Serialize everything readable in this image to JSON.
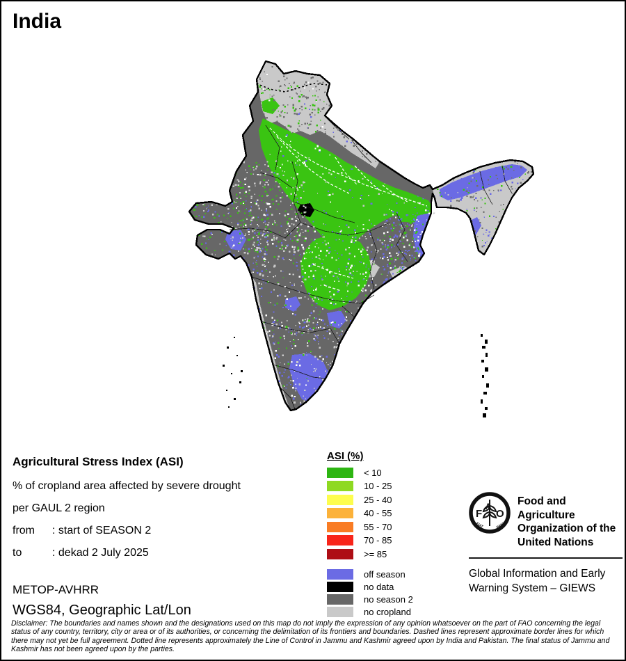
{
  "title": "India",
  "legend": {
    "title": "ASI (%)",
    "classes": [
      {
        "label": "< 10",
        "color": "#2db512"
      },
      {
        "label": "10 - 25",
        "color": "#8ed922"
      },
      {
        "label": "25 - 40",
        "color": "#fdfd4e"
      },
      {
        "label": "40 - 55",
        "color": "#fcb23a"
      },
      {
        "label": "55 - 70",
        "color": "#f97c24"
      },
      {
        "label": "70 - 85",
        "color": "#f8251a"
      },
      {
        "label": ">= 85",
        "color": "#ae0e15"
      }
    ],
    "extras": [
      {
        "label": "off season",
        "color": "#6b6be4"
      },
      {
        "label": "no data",
        "color": "#000000"
      },
      {
        "label": "no season 2",
        "color": "#676767"
      },
      {
        "label": "no cropland",
        "color": "#c9c9c9"
      }
    ]
  },
  "info": {
    "heading": "Agricultural Stress Index (ASI)",
    "line1": "% of cropland area affected by severe drought",
    "line2": "per GAUL 2 region",
    "from_label": "from",
    "from_value": ": start of SEASON 2",
    "to_label": "to",
    "to_value": ": dekad 2 July 2025"
  },
  "source": {
    "sensor": "METOP-AVHRR",
    "projection": "WGS84, Geographic Lat/Lon"
  },
  "fao": {
    "logo_text": "FAO",
    "logo_motto_left": "FIAT",
    "logo_motto_right": "PANIS",
    "org_lines": [
      "Food and Agriculture",
      "Organization of the",
      "United Nations"
    ],
    "giews_lines": [
      "Global Information and Early",
      "Warning System – GIEWS"
    ]
  },
  "disclaimer": "Disclaimer: The boundaries and names shown and the designations used on this map do not imply the expression of any opinion whatsoever on the part of FAO concerning the legal status of any country, territory, city or area or of its authorities, or concerning the delimitation of its frontiers and boundaries. Dashed lines represent approximate border lines for which there may not yet be full agreement. Dotted line represents approximately the Line of Control in Jammu and Kashmir agreed upon by India and Pakistan. The final status of Jammu and Kashmir has not been agreed upon by the parties.",
  "map_colors": {
    "asi_under_10": "#3ac412",
    "off_season": "#6b6be4",
    "no_season_2": "#676767",
    "no_cropland": "#c9c9c9",
    "no_data": "#000000",
    "boundary": "#000000",
    "speckle_white": "#ffffff",
    "speckle_dark": "#6f6f6f"
  }
}
